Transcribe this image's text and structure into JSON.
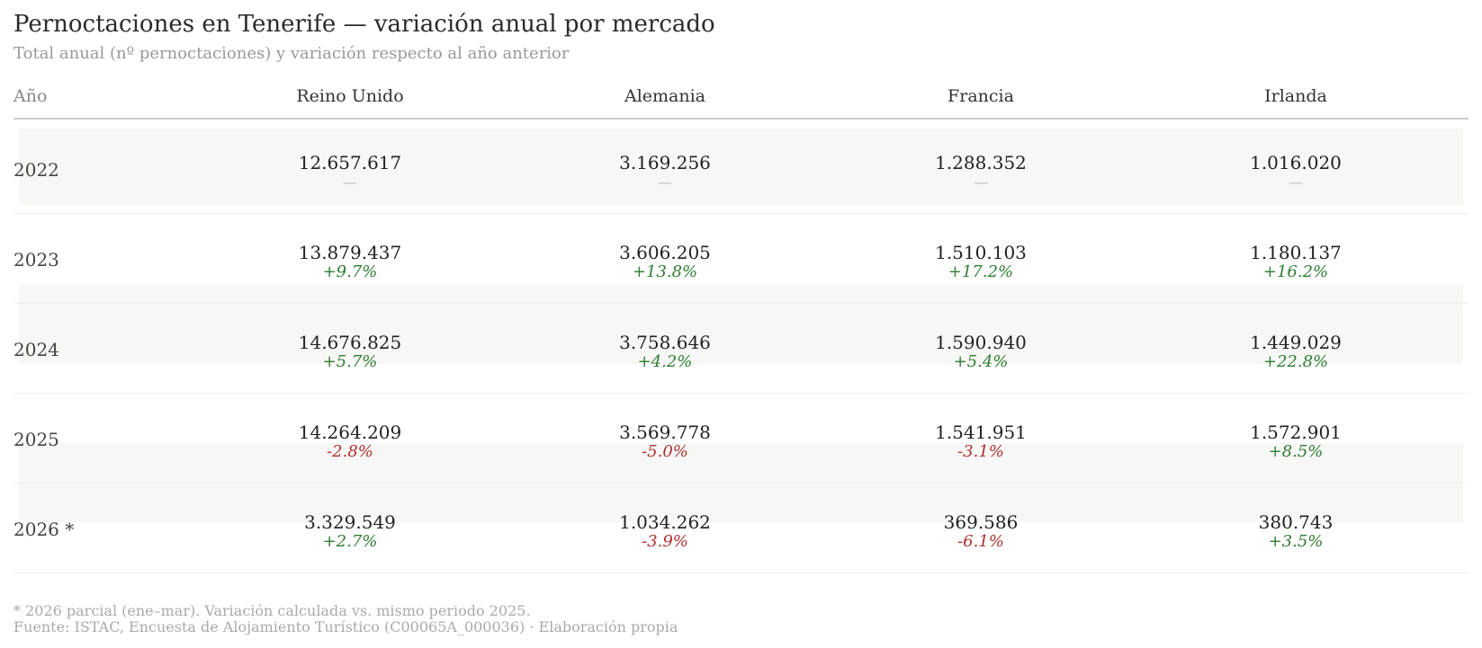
{
  "chart_data": {
    "type": "table",
    "title": "Pernoctaciones en Tenerife — variación anual por mercado",
    "subtitle": "Total anual (nº pernoctaciones) y variación respecto al año anterior",
    "year_header": "Año",
    "columns": [
      "Reino Unido",
      "Alemania",
      "Francia",
      "Irlanda"
    ],
    "rows": [
      {
        "year": "2022",
        "values": [
          "12.657.617",
          "3.169.256",
          "1.288.352",
          "1.016.020"
        ],
        "changes": [
          "—",
          "—",
          "—",
          "—"
        ],
        "change_sign": [
          "none",
          "none",
          "none",
          "none"
        ]
      },
      {
        "year": "2023",
        "values": [
          "13.879.437",
          "3.606.205",
          "1.510.103",
          "1.180.137"
        ],
        "changes": [
          "+9.7%",
          "+13.8%",
          "+17.2%",
          "+16.2%"
        ],
        "change_sign": [
          "pos",
          "pos",
          "pos",
          "pos"
        ]
      },
      {
        "year": "2024",
        "values": [
          "14.676.825",
          "3.758.646",
          "1.590.940",
          "1.449.029"
        ],
        "changes": [
          "+5.7%",
          "+4.2%",
          "+5.4%",
          "+22.8%"
        ],
        "change_sign": [
          "pos",
          "pos",
          "pos",
          "pos"
        ]
      },
      {
        "year": "2025",
        "values": [
          "14.264.209",
          "3.569.778",
          "1.541.951",
          "1.572.901"
        ],
        "changes": [
          "-2.8%",
          "-5.0%",
          "-3.1%",
          "+8.5%"
        ],
        "change_sign": [
          "neg",
          "neg",
          "neg",
          "pos"
        ]
      },
      {
        "year": "2026 *",
        "values": [
          "3.329.549",
          "1.034.262",
          "369.586",
          "380.743"
        ],
        "changes": [
          "+2.7%",
          "-3.9%",
          "-6.1%",
          "+3.5%"
        ],
        "change_sign": [
          "pos",
          "neg",
          "neg",
          "pos"
        ]
      }
    ],
    "footnote": "* 2026 parcial (ene–mar). Variación calculada vs. mismo periodo 2025.",
    "source": "Fuente: ISTAC, Encuesta de Alojamiento Turístico (C00065A_000036)  ·  Elaboración propia",
    "colors": {
      "positive": "#2e7d32",
      "negative": "#b03030",
      "band": "#f7f7f5"
    }
  }
}
